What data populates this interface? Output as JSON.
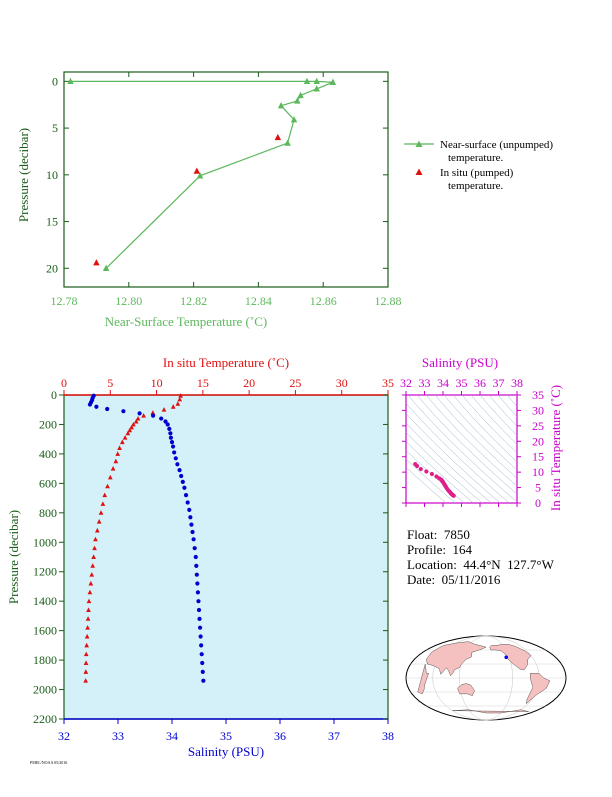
{
  "colors": {
    "green": "#5cb85c",
    "red": "#e01010",
    "blue": "#0000cc",
    "magenta": "#cc00cc",
    "darkgreen": "#1a5c1a",
    "plotbg": "#d4f0f8"
  },
  "chart_data": [
    {
      "type": "line",
      "xlabel": "Near-Surface Temperature (˚C)",
      "ylabel": "Pressure (decibar)",
      "xlim": [
        12.78,
        12.88
      ],
      "ylim": [
        22,
        -1
      ],
      "xticks": [
        "12.78",
        "12.80",
        "12.82",
        "12.84",
        "12.86",
        "12.88"
      ],
      "yticks": [
        "0",
        "5",
        "10",
        "15",
        "20"
      ],
      "series": [
        {
          "name": "Near-surface (unpumped) temperature.",
          "marker": "triangle",
          "color": "#5cb85c",
          "points": [
            [
              12.782,
              0
            ],
            [
              12.855,
              0
            ],
            [
              12.858,
              0
            ],
            [
              12.863,
              0.1
            ],
            [
              12.858,
              0.8
            ],
            [
              12.853,
              1.5
            ],
            [
              12.852,
              2.1
            ],
            [
              12.847,
              2.6
            ],
            [
              12.851,
              4.1
            ],
            [
              12.849,
              6.6
            ],
            [
              12.822,
              10.1
            ],
            [
              12.793,
              20.0
            ]
          ]
        },
        {
          "name": "In situ (pumped) temperature.",
          "marker": "triangle",
          "color": "#e01010",
          "points": [
            [
              12.846,
              6.0
            ],
            [
              12.821,
              9.6
            ],
            [
              12.79,
              19.4
            ]
          ]
        }
      ]
    },
    {
      "type": "scatter",
      "ylabel": "Pressure (decibar)",
      "top_axis_label": "In situ Temperature (˚C)",
      "bottom_axis_label": "Salinity (PSU)",
      "temperature_lim": [
        0,
        35
      ],
      "salinity_lim": [
        32,
        38
      ],
      "pressure_lim": [
        2200,
        0
      ],
      "temperature_ticks": [
        "0",
        "5",
        "10",
        "15",
        "20",
        "25",
        "30",
        "35"
      ],
      "salinity_ticks": [
        "32",
        "33",
        "34",
        "35",
        "36",
        "37",
        "38"
      ],
      "pressure_ticks": [
        "0",
        "200",
        "400",
        "600",
        "800",
        "1000",
        "1200",
        "1400",
        "1600",
        "1800",
        "2000",
        "2200"
      ],
      "temperature_profile": [
        [
          12.6,
          5
        ],
        [
          12.5,
          30
        ],
        [
          12.3,
          60
        ],
        [
          11.8,
          80
        ],
        [
          10.8,
          100
        ],
        [
          9.6,
          120
        ],
        [
          8.6,
          140
        ],
        [
          8.0,
          160
        ],
        [
          7.8,
          180
        ],
        [
          7.5,
          200
        ],
        [
          7.3,
          220
        ],
        [
          7.1,
          240
        ],
        [
          6.9,
          260
        ],
        [
          6.6,
          290
        ],
        [
          6.3,
          320
        ],
        [
          6.0,
          360
        ],
        [
          5.8,
          400
        ],
        [
          5.6,
          450
        ],
        [
          5.3,
          500
        ],
        [
          5.0,
          560
        ],
        [
          4.7,
          620
        ],
        [
          4.4,
          680
        ],
        [
          4.2,
          740
        ],
        [
          4.0,
          800
        ],
        [
          3.8,
          860
        ],
        [
          3.6,
          920
        ],
        [
          3.4,
          980
        ],
        [
          3.3,
          1040
        ],
        [
          3.2,
          1100
        ],
        [
          3.1,
          1160
        ],
        [
          3.0,
          1220
        ],
        [
          2.9,
          1280
        ],
        [
          2.8,
          1340
        ],
        [
          2.7,
          1400
        ],
        [
          2.65,
          1460
        ],
        [
          2.6,
          1520
        ],
        [
          2.55,
          1580
        ],
        [
          2.5,
          1640
        ],
        [
          2.45,
          1700
        ],
        [
          2.4,
          1760
        ],
        [
          2.38,
          1820
        ],
        [
          2.36,
          1880
        ],
        [
          2.34,
          1940
        ]
      ],
      "salinity_profile": [
        [
          32.55,
          5
        ],
        [
          32.53,
          20
        ],
        [
          32.52,
          35
        ],
        [
          32.5,
          50
        ],
        [
          32.48,
          65
        ],
        [
          32.6,
          80
        ],
        [
          32.8,
          95
        ],
        [
          33.1,
          110
        ],
        [
          33.4,
          125
        ],
        [
          33.65,
          140
        ],
        [
          33.8,
          160
        ],
        [
          33.88,
          180
        ],
        [
          33.92,
          200
        ],
        [
          33.95,
          230
        ],
        [
          33.97,
          260
        ],
        [
          33.98,
          290
        ],
        [
          34.0,
          320
        ],
        [
          34.02,
          350
        ],
        [
          34.04,
          390
        ],
        [
          34.07,
          430
        ],
        [
          34.1,
          470
        ],
        [
          34.14,
          510
        ],
        [
          34.17,
          550
        ],
        [
          34.2,
          590
        ],
        [
          34.23,
          630
        ],
        [
          34.26,
          680
        ],
        [
          34.29,
          730
        ],
        [
          34.32,
          780
        ],
        [
          34.34,
          830
        ],
        [
          34.36,
          880
        ],
        [
          34.38,
          930
        ],
        [
          34.4,
          980
        ],
        [
          34.42,
          1040
        ],
        [
          34.44,
          1100
        ],
        [
          34.45,
          1160
        ],
        [
          34.46,
          1220
        ],
        [
          34.47,
          1280
        ],
        [
          34.48,
          1340
        ],
        [
          34.49,
          1400
        ],
        [
          34.5,
          1460
        ],
        [
          34.51,
          1520
        ],
        [
          34.52,
          1580
        ],
        [
          34.53,
          1640
        ],
        [
          34.54,
          1700
        ],
        [
          34.55,
          1760
        ],
        [
          34.56,
          1820
        ],
        [
          34.57,
          1880
        ],
        [
          34.58,
          1940
        ]
      ]
    },
    {
      "type": "scatter",
      "xlabel": "Salinity (PSU)",
      "ylabel": "In situ Temperature (˚C)",
      "xlim": [
        32,
        38
      ],
      "ylim": [
        0,
        35
      ],
      "xticks": [
        "32",
        "33",
        "34",
        "35",
        "36",
        "37",
        "38"
      ],
      "yticks": [
        "0",
        "5",
        "10",
        "15",
        "20",
        "25",
        "30",
        "35"
      ],
      "points": [
        [
          32.5,
          12.6
        ],
        [
          32.6,
          12.0
        ],
        [
          32.8,
          11.0
        ],
        [
          33.1,
          10.2
        ],
        [
          33.4,
          9.4
        ],
        [
          33.65,
          8.6
        ],
        [
          33.8,
          8.0
        ],
        [
          33.9,
          7.6
        ],
        [
          33.95,
          7.2
        ],
        [
          34.0,
          6.8
        ],
        [
          34.05,
          6.3
        ],
        [
          34.1,
          5.8
        ],
        [
          34.15,
          5.3
        ],
        [
          34.2,
          4.8
        ],
        [
          34.26,
          4.3
        ],
        [
          34.32,
          3.9
        ],
        [
          34.38,
          3.5
        ],
        [
          34.42,
          3.2
        ],
        [
          34.46,
          2.9
        ],
        [
          34.5,
          2.7
        ],
        [
          34.54,
          2.5
        ],
        [
          34.58,
          2.35
        ]
      ]
    }
  ],
  "legend": {
    "unpumped_label": "Near-surface (unpumped)",
    "unpumped_label2": "temperature.",
    "pumped_label": "In situ (pumped)",
    "pumped_label2": "temperature."
  },
  "info": {
    "float": "Float:  7850",
    "profile": "Profile:  164",
    "location": "Location:  44.4°N  127.7°W",
    "date": "Date:  05/11/2016"
  },
  "map": {
    "marker_lat": 44.4,
    "marker_lon": -127.7
  },
  "stamp": "PMEL/NOAA 05/2016"
}
